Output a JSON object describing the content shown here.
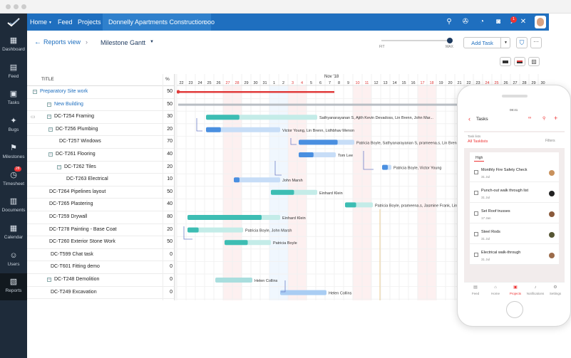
{
  "nav": {
    "home": "Home",
    "feed": "Feed",
    "projects": "Projects",
    "project_name": "Donnelly Apartments Construction",
    "more": "ooo",
    "notif_count": "1"
  },
  "sidebar": [
    {
      "label": "Dashboard",
      "icon": "dashboard-icon"
    },
    {
      "label": "Feed",
      "icon": "feed-icon"
    },
    {
      "label": "Tasks",
      "icon": "tasks-icon"
    },
    {
      "label": "Bugs",
      "icon": "bug-icon"
    },
    {
      "label": "Milestones",
      "icon": "milestones-icon"
    },
    {
      "label": "Timesheet",
      "icon": "timesheet-icon",
      "badge": "28"
    },
    {
      "label": "Documents",
      "icon": "documents-icon"
    },
    {
      "label": "Calendar",
      "icon": "calendar-icon"
    },
    {
      "label": "Users",
      "icon": "users-icon"
    },
    {
      "label": "Reports",
      "icon": "reports-icon"
    }
  ],
  "subbar": {
    "back": "Reports view",
    "view": "Milestone Gantt",
    "zoom_min": "FIT",
    "zoom_max": "MAX",
    "add_task": "Add Task"
  },
  "grid": {
    "col_title": "TITLE",
    "col_pct": "%"
  },
  "timeline": {
    "month": "Nov '18",
    "days": [
      "22",
      "23",
      "24",
      "25",
      "26",
      "27",
      "28",
      "29",
      "30",
      "31",
      "1",
      "2",
      "3",
      "4",
      "5",
      "6",
      "7",
      "8",
      "9",
      "10",
      "11",
      "12",
      "13",
      "14",
      "15",
      "16",
      "17",
      "18",
      "19",
      "20",
      "21",
      "22",
      "23",
      "24",
      "25",
      "26",
      "27",
      "28",
      "29",
      "30"
    ],
    "weekend_idx": [
      5,
      6,
      12,
      13,
      19,
      20,
      26,
      27,
      33,
      34
    ]
  },
  "rows": [
    {
      "title": "Preparatory Site work",
      "pct": "50",
      "level": 0,
      "toggle": "−",
      "blue": true
    },
    {
      "title": "New Building",
      "pct": "50",
      "level": 1,
      "toggle": "−",
      "blue": true
    },
    {
      "title": "DC-T254 Framing",
      "pct": "30",
      "level": 1,
      "toggle": "−",
      "comment": true
    },
    {
      "title": "DC-T256 Plumbing",
      "pct": "20",
      "level": 2,
      "toggle": "−"
    },
    {
      "title": "DC-T257 Windows",
      "pct": "70",
      "level": 3
    },
    {
      "title": "DC-T261 Flooring",
      "pct": "40",
      "level": 2,
      "toggle": "−"
    },
    {
      "title": "DC-T262 Tiles",
      "pct": "20",
      "level": 3,
      "toggle": "−"
    },
    {
      "title": "DC-T263 Electrical",
      "pct": "10",
      "level": 4
    },
    {
      "title": "DC-T264 Pipelines layout",
      "pct": "50",
      "level": 1
    },
    {
      "title": "DC-T265 Plastering",
      "pct": "40",
      "level": 1
    },
    {
      "title": "DC-T259 Drywall",
      "pct": "80",
      "level": 1
    },
    {
      "title": "DC-T278 Painting - Base Coat",
      "pct": "20",
      "level": 1
    },
    {
      "title": "DC-T260 Exterior Stone Work",
      "pct": "50",
      "level": 1
    },
    {
      "title": "DC-T599 Chat task",
      "pct": "0",
      "level": 2
    },
    {
      "title": "DC-T601 Fitting demo",
      "pct": "0",
      "level": 2
    },
    {
      "title": "DC-T248 Demolition",
      "pct": "0",
      "level": 1,
      "toggle": "−"
    },
    {
      "title": "DC-T249 Excavation",
      "pct": "0",
      "level": 2
    }
  ],
  "bars": [
    {
      "row": 0,
      "start": 0,
      "end": 17,
      "color": "#e03b3b",
      "kind": "milestone"
    },
    {
      "row": 1,
      "start": 0,
      "end": 39,
      "color": "#b9bec4",
      "kind": "summary"
    },
    {
      "row": 2,
      "start": 3,
      "end": 15,
      "color": "#3dbdb3",
      "progress": 0.3,
      "label": "Sathyanarayanan S, Ajith Kevin Devadoss, Lin Brenn, John Mar..."
    },
    {
      "row": 3,
      "start": 3,
      "end": 11,
      "color": "#4a8fe0",
      "progress": 0.2,
      "label": "Victor Young, Lin Brenn, Lidhbhav Menon"
    },
    {
      "row": 4,
      "start": 13,
      "end": 19,
      "color": "#4a8fe0",
      "progress": 0.7,
      "label": "Patricia Boyle, Sathyanarayanan S, prameena.s, Lin Brenn, Victor Young"
    },
    {
      "row": 5,
      "start": 13,
      "end": 17,
      "color": "#4a8fe0",
      "progress": 0.4,
      "label": "Tom Lee"
    },
    {
      "row": 6,
      "start": 22,
      "end": 23,
      "color": "#4a8fe0",
      "progress": 0.2,
      "label": "Patricia Boyle, Victor Young"
    },
    {
      "row": 7,
      "start": 6,
      "end": 11,
      "color": "#4a8fe0",
      "progress": 0.1,
      "label": "John Marsh"
    },
    {
      "row": 8,
      "start": 10,
      "end": 15,
      "color": "#3dbdb3",
      "progress": 0.5,
      "label": "Einhard Klein"
    },
    {
      "row": 9,
      "start": 18,
      "end": 21,
      "color": "#3dbdb3",
      "progress": 0.4,
      "label": "Patricia Boyle, prameena.s, Jasmine Frank, Lin Brenn, Victor Young"
    },
    {
      "row": 10,
      "start": 1,
      "end": 11,
      "color": "#3dbdb3",
      "progress": 0.8,
      "label": "Einhard Klein"
    },
    {
      "row": 11,
      "start": 1,
      "end": 7,
      "color": "#3dbdb3",
      "progress": 0.2,
      "label": "Patricia Boyle, John Marsh"
    },
    {
      "row": 12,
      "start": 5,
      "end": 10,
      "color": "#3dbdb3",
      "progress": 0.5,
      "label": "Patricia Boyle"
    },
    {
      "row": 15,
      "start": 4,
      "end": 8,
      "color": "#a9dede",
      "progress": 0,
      "label": "Helen Collins"
    },
    {
      "row": 16,
      "start": 11,
      "end": 16,
      "color": "#a9cdf3",
      "progress": 0,
      "label": "Helen Collins"
    }
  ],
  "phone": {
    "time": "08:41",
    "title": "Tasks",
    "list_hint": "Task lists",
    "list_name": "All Tasklists",
    "filters": "Filters",
    "section": "High",
    "tasks": [
      {
        "name": "Monthly Fire Safety Check",
        "date": "31 Jul"
      },
      {
        "name": "Punch-out walk through list",
        "date": "31 Jul"
      },
      {
        "name": "Set Roof trusses",
        "date": "17 Jan"
      },
      {
        "name": "Steel Rods",
        "date": "31 Jul"
      },
      {
        "name": "Electrical walk-through",
        "date": "31 Jul"
      }
    ],
    "tabs": [
      "Feed",
      "Home",
      "Projects",
      "Notifications",
      "Settings"
    ]
  }
}
